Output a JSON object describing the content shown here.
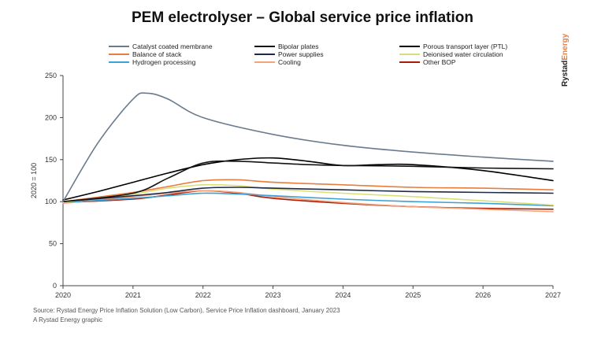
{
  "title": "PEM electrolyser – Global service price inflation",
  "brand": {
    "part1": "Rystad",
    "part2": "Energy",
    "accent_color": "#e87d3e"
  },
  "source_line": "Source: Rystad Energy Price Inflation Solution (Low Carbon), Service Price Inflation dashboard, January 2023",
  "credit_line": "A Rystad Energy graphic",
  "chart_data": {
    "type": "line",
    "title": "PEM electrolyser – Global service price inflation",
    "xlabel": "",
    "ylabel": "2020 = 100",
    "xlim": [
      2020,
      2027
    ],
    "ylim": [
      0,
      250
    ],
    "x_ticks": [
      "2020",
      "2021",
      "2022",
      "2023",
      "2024",
      "2025",
      "2026",
      "2027"
    ],
    "y_ticks": [
      "0",
      "50",
      "100",
      "150",
      "200",
      "250"
    ],
    "grid": false,
    "legend_position": "top",
    "series": [
      {
        "name": "Catalyst coated membrane",
        "color": "#6a7b8e",
        "x": [
          2020,
          2020.5,
          2021,
          2021.2,
          2021.5,
          2022,
          2023,
          2024,
          2025,
          2026,
          2027
        ],
        "y": [
          100,
          170,
          222,
          229,
          222,
          200,
          180,
          167,
          159,
          153,
          148
        ]
      },
      {
        "name": "Bipolar plates",
        "color": "#141414",
        "x": [
          2020,
          2021,
          2021.5,
          2022,
          2022.5,
          2023,
          2023.5,
          2024,
          2025,
          2026,
          2027
        ],
        "y": [
          100,
          110,
          128,
          146,
          148,
          146,
          144,
          143,
          142,
          140,
          139
        ]
      },
      {
        "name": "Porous transport layer (PTL)",
        "color": "#000000",
        "x": [
          2020,
          2020.5,
          2021,
          2021.5,
          2022,
          2022.5,
          2023,
          2023.5,
          2024,
          2024.5,
          2025,
          2026,
          2027
        ],
        "y": [
          102,
          112,
          123,
          134,
          144,
          150,
          152,
          148,
          143,
          144,
          144,
          137,
          125
        ]
      },
      {
        "name": "Balance of stack",
        "color": "#e87d3e",
        "x": [
          2020,
          2021,
          2021.5,
          2022,
          2022.5,
          2023,
          2024,
          2025,
          2026,
          2027
        ],
        "y": [
          100,
          111,
          118,
          125,
          126,
          123,
          120,
          117,
          116,
          114
        ]
      },
      {
        "name": "Power supplies",
        "color": "#1f2a44",
        "x": [
          2020,
          2021,
          2021.5,
          2022,
          2022.5,
          2023,
          2024,
          2025,
          2026,
          2027
        ],
        "y": [
          100,
          107,
          111,
          116,
          117,
          116,
          114,
          112,
          111,
          110
        ]
      },
      {
        "name": "Deionised water circulation",
        "color": "#d9e07a",
        "x": [
          2020,
          2021,
          2021.5,
          2022,
          2022.5,
          2023,
          2024,
          2025,
          2026,
          2027
        ],
        "y": [
          99,
          109,
          116,
          120,
          119,
          115,
          110,
          106,
          101,
          96
        ]
      },
      {
        "name": "Hydrogen processing",
        "color": "#3fa0d6",
        "x": [
          2020,
          2021,
          2021.5,
          2022,
          2022.5,
          2023,
          2024,
          2025,
          2026,
          2027
        ],
        "y": [
          99,
          104,
          107,
          110,
          109,
          107,
          103,
          100,
          98,
          95
        ]
      },
      {
        "name": "Cooling",
        "color": "#f4a37a",
        "x": [
          2020,
          2021,
          2021.5,
          2022,
          2022.5,
          2023,
          2024,
          2025,
          2026,
          2027
        ],
        "y": [
          98,
          106,
          110,
          113,
          111,
          106,
          99,
          94,
          91,
          88
        ]
      },
      {
        "name": "Other BOP",
        "color": "#a81c07",
        "x": [
          2020,
          2021,
          2021.5,
          2022,
          2022.5,
          2023,
          2024,
          2025,
          2026,
          2027
        ],
        "y": [
          99,
          103,
          108,
          113,
          110,
          104,
          98,
          94,
          92,
          91
        ]
      }
    ]
  }
}
